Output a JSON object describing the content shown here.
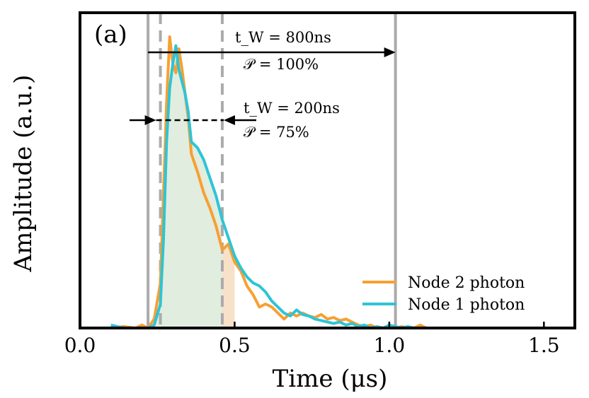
{
  "chart_data": {
    "type": "line",
    "panel_label": "(a)",
    "xlabel": "Time (μs)",
    "ylabel": "Amplitude (a.u.)",
    "xlim": [
      0.0,
      1.6
    ],
    "ylim": [
      0,
      1.05
    ],
    "xticks": [
      {
        "value": 0.0,
        "label": "0.0"
      },
      {
        "value": 0.5,
        "label": "0.5"
      },
      {
        "value": 1.0,
        "label": "1.0"
      },
      {
        "value": 1.5,
        "label": "1.5"
      }
    ],
    "windows": {
      "wide": {
        "start": 0.22,
        "end": 1.02,
        "line_style": "solid",
        "label_tw": "t_W = 800ns",
        "label_p": "𝒫 = 100%"
      },
      "narrow": {
        "start": 0.26,
        "end": 0.46,
        "line_style": "dashed",
        "label_tw": "t_W = 200ns",
        "label_p": "𝒫 = 75%"
      }
    },
    "series": [
      {
        "name": "Node 2 photon",
        "color": "#F7A032",
        "x": [
          0.1,
          0.14,
          0.18,
          0.2,
          0.22,
          0.24,
          0.26,
          0.27,
          0.28,
          0.29,
          0.3,
          0.31,
          0.32,
          0.33,
          0.34,
          0.35,
          0.36,
          0.38,
          0.4,
          0.42,
          0.44,
          0.46,
          0.48,
          0.5,
          0.52,
          0.54,
          0.56,
          0.58,
          0.6,
          0.62,
          0.64,
          0.66,
          0.68,
          0.7,
          0.72,
          0.74,
          0.76,
          0.78,
          0.8,
          0.82,
          0.84,
          0.86,
          0.88,
          0.9,
          0.92,
          0.94,
          0.96,
          0.98,
          1.0,
          1.02,
          1.04,
          1.06,
          1.08,
          1.1,
          1.12
        ],
        "y": [
          0.0,
          0.005,
          0.0,
          0.01,
          0.0,
          0.03,
          0.15,
          0.45,
          0.75,
          0.97,
          0.88,
          0.85,
          0.93,
          0.86,
          0.78,
          0.7,
          0.58,
          0.52,
          0.45,
          0.4,
          0.34,
          0.26,
          0.28,
          0.22,
          0.19,
          0.14,
          0.11,
          0.07,
          0.08,
          0.07,
          0.05,
          0.03,
          0.05,
          0.04,
          0.05,
          0.04,
          0.035,
          0.045,
          0.03,
          0.035,
          0.025,
          0.03,
          0.02,
          0.01,
          0.005,
          0.01,
          0.0,
          0.0,
          0.005,
          0.0,
          0.005,
          0.0,
          0.0,
          0.01,
          0.0
        ]
      },
      {
        "name": "Node 1 photon",
        "color": "#2EC4D6",
        "x": [
          0.1,
          0.14,
          0.18,
          0.2,
          0.22,
          0.24,
          0.26,
          0.27,
          0.28,
          0.29,
          0.3,
          0.31,
          0.32,
          0.33,
          0.34,
          0.35,
          0.36,
          0.38,
          0.4,
          0.42,
          0.44,
          0.46,
          0.48,
          0.5,
          0.52,
          0.54,
          0.56,
          0.58,
          0.6,
          0.62,
          0.64,
          0.66,
          0.68,
          0.7,
          0.72,
          0.74,
          0.76,
          0.78,
          0.8,
          0.82,
          0.84,
          0.86,
          0.88,
          0.9,
          0.92,
          0.94,
          0.96,
          0.98,
          1.0,
          1.02,
          1.04,
          1.06,
          1.08,
          1.1,
          1.12
        ],
        "y": [
          0.01,
          0.0,
          0.0,
          0.0,
          0.0,
          0.01,
          0.08,
          0.3,
          0.62,
          0.8,
          0.88,
          0.94,
          0.86,
          0.82,
          0.78,
          0.72,
          0.62,
          0.6,
          0.56,
          0.5,
          0.44,
          0.36,
          0.3,
          0.24,
          0.2,
          0.17,
          0.15,
          0.14,
          0.12,
          0.09,
          0.07,
          0.05,
          0.04,
          0.06,
          0.045,
          0.04,
          0.03,
          0.025,
          0.02,
          0.015,
          0.02,
          0.01,
          0.015,
          0.005,
          0.01,
          0.0,
          0.005,
          0.0,
          0.01,
          0.005,
          0.0,
          0.005,
          0.0,
          0.0,
          0.0
        ]
      }
    ],
    "fill": {
      "series_index": 1,
      "from": 0.22,
      "to": 0.46,
      "color": "#C9DFC4",
      "opacity": 0.55
    },
    "fill_orange": {
      "series_index": 0,
      "from": 0.46,
      "to": 0.5,
      "color": "#F7D3B0",
      "opacity": 0.7
    },
    "legend": {
      "placement": "bottom-right"
    }
  }
}
